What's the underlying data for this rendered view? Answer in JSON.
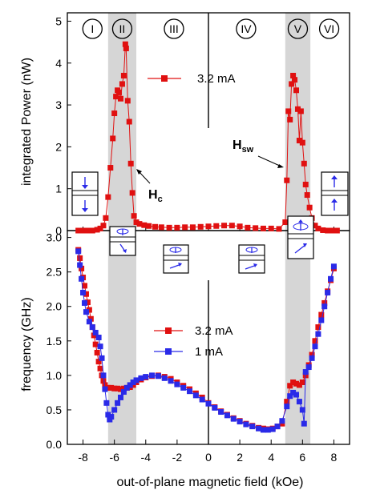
{
  "colors": {
    "red": "#e01010",
    "blue": "#2a2ae8",
    "band": "#d6d6d6",
    "axis": "#000000",
    "inset_arrow": "#2a2ae8"
  },
  "chart_data": [
    {
      "type": "scatter",
      "panel": "top",
      "ylabel": "integrated Power (nW)",
      "xlim": [
        -9,
        9
      ],
      "ylim": [
        0,
        5.2
      ],
      "yticks": [
        "0",
        "1",
        "2",
        "3",
        "4",
        "5"
      ],
      "grid": false,
      "legend": {
        "placement": "top-center",
        "entries": [
          "3.2 mA"
        ]
      },
      "regions": [
        "I",
        "II",
        "III",
        "IV",
        "V",
        "VI"
      ],
      "annotations": {
        "hc": "H",
        "hc_sub": "c",
        "hsw": "H",
        "hsw_sub": "sw"
      },
      "shaded_x": [
        [
          -6.4,
          -4.6
        ],
        [
          4.9,
          6.5
        ]
      ],
      "series": [
        {
          "name": "3.2 mA",
          "color": "#e01010",
          "marker": "square",
          "x": [
            -8.3,
            -8.0,
            -7.7,
            -7.4,
            -7.1,
            -6.9,
            -6.7,
            -6.55,
            -6.4,
            -6.25,
            -6.1,
            -6.0,
            -5.9,
            -5.8,
            -5.7,
            -5.6,
            -5.5,
            -5.4,
            -5.3,
            -5.25,
            -5.15,
            -5.05,
            -4.95,
            -4.85,
            -4.75,
            -4.6,
            -4.4,
            -4.1,
            -3.8,
            -3.4,
            -3.0,
            -2.5,
            -2.0,
            -1.5,
            -1.0,
            -0.5,
            0.0,
            0.5,
            1.0,
            1.5,
            2.0,
            2.5,
            3.0,
            3.5,
            4.0,
            4.5,
            4.9,
            5.0,
            5.1,
            5.2,
            5.3,
            5.4,
            5.5,
            5.6,
            5.7,
            5.8,
            5.9,
            6.0,
            6.1,
            6.2,
            6.3,
            6.45,
            6.6,
            6.8,
            7.0,
            7.3,
            7.6,
            7.9,
            8.2
          ],
          "y": [
            0.0,
            0.0,
            0.0,
            0.0,
            0.02,
            0.05,
            0.12,
            0.3,
            0.8,
            1.5,
            2.2,
            2.8,
            3.2,
            3.35,
            3.3,
            3.15,
            3.5,
            3.7,
            4.45,
            4.35,
            3.1,
            2.6,
            1.6,
            0.9,
            0.35,
            0.2,
            0.16,
            0.13,
            0.11,
            0.09,
            0.08,
            0.07,
            0.07,
            0.08,
            0.08,
            0.09,
            0.1,
            0.11,
            0.12,
            0.12,
            0.1,
            0.07,
            0.06,
            0.05,
            0.05,
            0.04,
            0.2,
            1.2,
            2.85,
            2.65,
            3.5,
            3.7,
            3.6,
            3.35,
            2.9,
            2.15,
            2.85,
            2.1,
            1.6,
            1.1,
            0.85,
            0.55,
            0.3,
            0.12,
            0.05,
            0.01,
            0.0,
            0.0,
            0.0
          ]
        }
      ]
    },
    {
      "type": "scatter",
      "panel": "bottom",
      "xlabel": "out-of-plane magnetic field (kOe)",
      "ylabel": "frequency (GHz)",
      "xlim": [
        -9,
        9
      ],
      "ylim": [
        0,
        3.1
      ],
      "xticks": [
        "-8",
        "-6",
        "-4",
        "-2",
        "0",
        "2",
        "4",
        "6",
        "8"
      ],
      "yticks": [
        "0.0",
        "0.5",
        "1.0",
        "1.5",
        "2.0",
        "2.5",
        "3.0"
      ],
      "grid": false,
      "legend": {
        "placement": "center",
        "entries": [
          "3.2 mA",
          "1 mA"
        ]
      },
      "shaded_x": [
        [
          -6.4,
          -4.6
        ],
        [
          4.9,
          6.5
        ]
      ],
      "series": [
        {
          "name": "3.2 mA",
          "color": "#e01010",
          "marker": "square",
          "x": [
            -8.3,
            -8.2,
            -8.1,
            -8.0,
            -7.9,
            -7.8,
            -7.7,
            -7.6,
            -7.5,
            -7.4,
            -7.3,
            -7.2,
            -7.1,
            -7.0,
            -6.9,
            -6.8,
            -6.7,
            -6.6,
            -6.5,
            -6.4,
            -6.2,
            -6.0,
            -5.8,
            -5.6,
            -5.4,
            -5.2,
            -5.0,
            -4.8,
            -4.6,
            -4.3,
            -4.0,
            -3.6,
            -3.2,
            -2.8,
            -2.4,
            -2.0,
            -1.6,
            -1.2,
            -0.8,
            -0.4,
            0.0,
            0.4,
            0.8,
            1.2,
            1.6,
            2.0,
            2.4,
            2.8,
            3.2,
            3.5,
            3.8,
            4.1,
            4.4,
            4.7,
            5.0,
            5.2,
            5.4,
            5.6,
            5.8,
            6.0,
            6.2,
            6.4,
            6.6,
            6.8,
            7.0,
            7.2,
            7.4,
            7.6,
            7.8,
            8.0
          ],
          "y": [
            2.82,
            2.7,
            2.55,
            2.42,
            2.3,
            2.18,
            2.06,
            1.95,
            1.82,
            1.7,
            1.58,
            1.45,
            1.33,
            1.2,
            1.1,
            1.0,
            0.92,
            0.86,
            0.82,
            0.82,
            0.82,
            0.81,
            0.81,
            0.8,
            0.81,
            0.82,
            0.83,
            0.86,
            0.9,
            0.94,
            0.97,
            0.99,
            1.0,
            0.98,
            0.95,
            0.9,
            0.85,
            0.8,
            0.74,
            0.68,
            0.6,
            0.54,
            0.48,
            0.43,
            0.38,
            0.34,
            0.3,
            0.27,
            0.24,
            0.23,
            0.22,
            0.23,
            0.26,
            0.3,
            0.62,
            0.85,
            0.9,
            0.88,
            0.86,
            0.9,
            1.0,
            1.15,
            1.3,
            1.5,
            1.7,
            1.88,
            2.05,
            2.22,
            2.38,
            2.55
          ]
        },
        {
          "name": "1 mA",
          "color": "#2a2ae8",
          "marker": "square",
          "x": [
            -8.3,
            -8.2,
            -8.1,
            -8.0,
            -7.9,
            -7.8,
            -7.6,
            -7.4,
            -7.2,
            -7.0,
            -6.9,
            -6.8,
            -6.7,
            -6.6,
            -6.5,
            -6.4,
            -6.3,
            -6.2,
            -6.0,
            -5.8,
            -5.6,
            -5.4,
            -5.2,
            -5.0,
            -4.8,
            -4.6,
            -4.3,
            -4.0,
            -3.6,
            -3.2,
            -2.8,
            -2.4,
            -2.0,
            -1.6,
            -1.2,
            -0.8,
            -0.4,
            0.0,
            0.4,
            0.8,
            1.2,
            1.6,
            2.0,
            2.4,
            2.8,
            3.2,
            3.5,
            3.8,
            4.1,
            4.4,
            4.7,
            5.0,
            5.2,
            5.4,
            5.6,
            5.8,
            6.0,
            6.1,
            6.2,
            6.4,
            6.6,
            6.8,
            7.0,
            7.2,
            7.4,
            7.6,
            7.8,
            8.0
          ],
          "y": [
            2.8,
            2.6,
            2.4,
            2.2,
            2.05,
            1.92,
            1.78,
            1.7,
            1.62,
            1.55,
            1.42,
            1.25,
            1.0,
            0.8,
            0.6,
            0.43,
            0.36,
            0.4,
            0.5,
            0.6,
            0.68,
            0.76,
            0.82,
            0.86,
            0.9,
            0.93,
            0.96,
            0.98,
            1.0,
            0.99,
            0.96,
            0.92,
            0.87,
            0.82,
            0.77,
            0.71,
            0.65,
            0.59,
            0.53,
            0.47,
            0.42,
            0.37,
            0.33,
            0.29,
            0.26,
            0.23,
            0.21,
            0.21,
            0.22,
            0.26,
            0.34,
            0.55,
            0.7,
            0.75,
            0.72,
            0.62,
            0.5,
            0.3,
            1.05,
            1.12,
            1.25,
            1.42,
            1.6,
            1.8,
            2.0,
            2.2,
            2.4,
            2.58
          ]
        }
      ]
    }
  ]
}
